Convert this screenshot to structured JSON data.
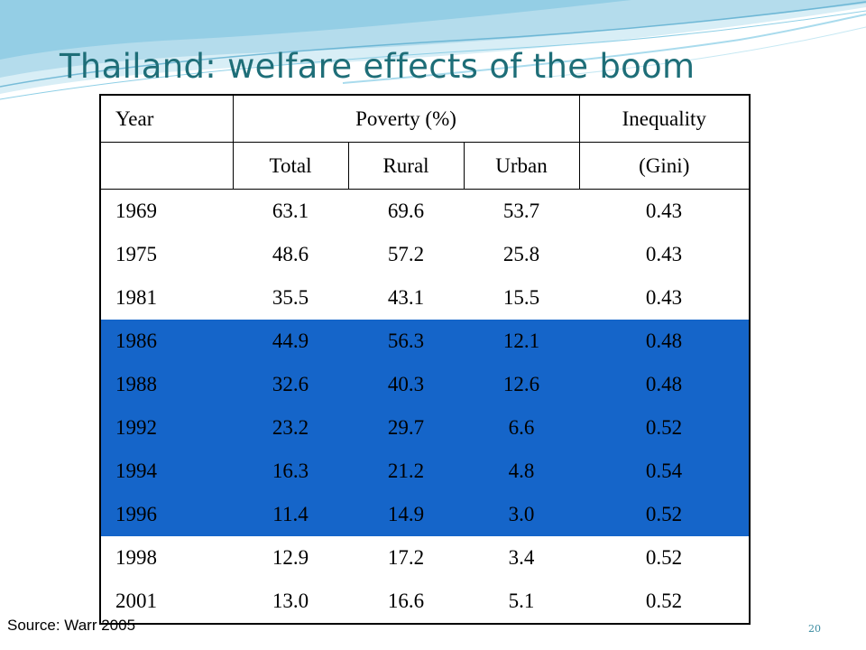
{
  "slide": {
    "title": "Thailand: welfare effects of the boom",
    "source": "Source: Warr 2005",
    "page_number": "20",
    "accent_color": "#1e6e78",
    "highlight_color": "#1565c9"
  },
  "table": {
    "header1": {
      "year": "Year",
      "poverty": "Poverty (%)",
      "inequality": "Inequality"
    },
    "header2": {
      "year": "",
      "total": "Total",
      "rural": "Rural",
      "urban": "Urban",
      "gini": "(Gini)"
    },
    "rows": [
      {
        "year": "1969",
        "total": "63.1",
        "rural": "69.6",
        "urban": "53.7",
        "gini": "0.43",
        "highlighted": false
      },
      {
        "year": "1975",
        "total": "48.6",
        "rural": "57.2",
        "urban": "25.8",
        "gini": "0.43",
        "highlighted": false
      },
      {
        "year": "1981",
        "total": "35.5",
        "rural": "43.1",
        "urban": "15.5",
        "gini": "0.43",
        "highlighted": false
      },
      {
        "year": "1986",
        "total": "44.9",
        "rural": "56.3",
        "urban": "12.1",
        "gini": "0.48",
        "highlighted": true
      },
      {
        "year": "1988",
        "total": "32.6",
        "rural": "40.3",
        "urban": "12.6",
        "gini": "0.48",
        "highlighted": true
      },
      {
        "year": "1992",
        "total": "23.2",
        "rural": "29.7",
        "urban": "6.6",
        "gini": "0.52",
        "highlighted": true
      },
      {
        "year": "1994",
        "total": "16.3",
        "rural": "21.2",
        "urban": "4.8",
        "gini": "0.54",
        "highlighted": true
      },
      {
        "year": "1996",
        "total": "11.4",
        "rural": "14.9",
        "urban": "3.0",
        "gini": "0.52",
        "highlighted": true
      },
      {
        "year": "1998",
        "total": "12.9",
        "rural": "17.2",
        "urban": "3.4",
        "gini": "0.52",
        "highlighted": false
      },
      {
        "year": "2001",
        "total": "13.0",
        "rural": "16.6",
        "urban": "5.1",
        "gini": "0.52",
        "highlighted": false
      }
    ]
  }
}
